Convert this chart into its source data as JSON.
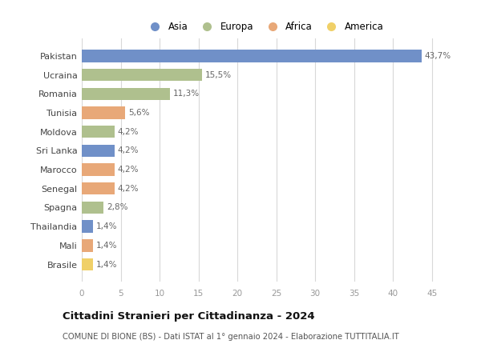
{
  "countries": [
    "Pakistan",
    "Ucraina",
    "Romania",
    "Tunisia",
    "Moldova",
    "Sri Lanka",
    "Marocco",
    "Senegal",
    "Spagna",
    "Thailandia",
    "Mali",
    "Brasile"
  ],
  "values": [
    43.7,
    15.5,
    11.3,
    5.6,
    4.2,
    4.2,
    4.2,
    4.2,
    2.8,
    1.4,
    1.4,
    1.4
  ],
  "labels": [
    "43,7%",
    "15,5%",
    "11,3%",
    "5,6%",
    "4,2%",
    "4,2%",
    "4,2%",
    "4,2%",
    "2,8%",
    "1,4%",
    "1,4%",
    "1,4%"
  ],
  "continents": [
    "Asia",
    "Europa",
    "Europa",
    "Africa",
    "Europa",
    "Asia",
    "Africa",
    "Africa",
    "Europa",
    "Asia",
    "Africa",
    "America"
  ],
  "colors": {
    "Asia": "#7090c8",
    "Europa": "#afc08e",
    "Africa": "#e8a878",
    "America": "#f0d068"
  },
  "legend_order": [
    "Asia",
    "Europa",
    "Africa",
    "America"
  ],
  "xlim": [
    0,
    47
  ],
  "xticks": [
    0,
    5,
    10,
    15,
    20,
    25,
    30,
    35,
    40,
    45
  ],
  "title": "Cittadini Stranieri per Cittadinanza - 2024",
  "subtitle": "COMUNE DI BIONE (BS) - Dati ISTAT al 1° gennaio 2024 - Elaborazione TUTTITALIA.IT",
  "background_color": "#ffffff",
  "grid_color": "#d8d8d8",
  "bar_height": 0.65
}
